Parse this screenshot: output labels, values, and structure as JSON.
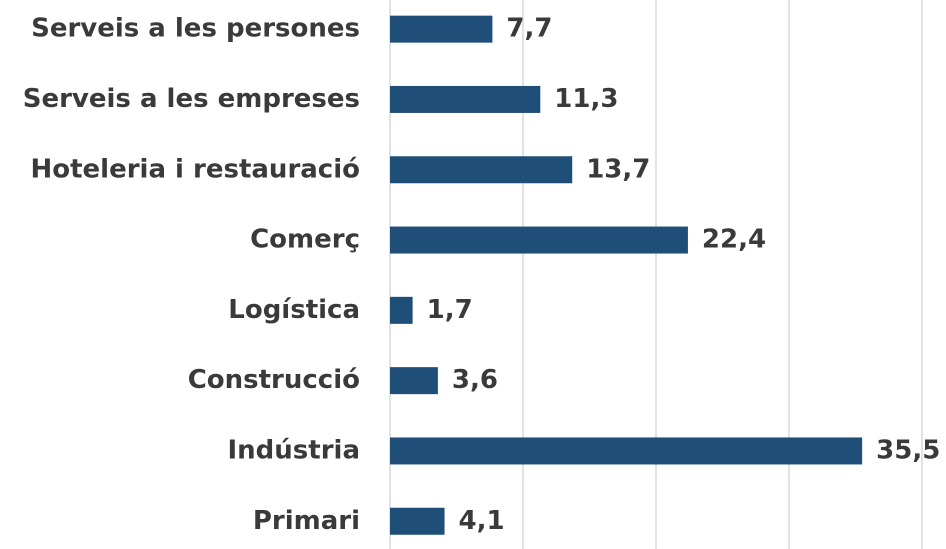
{
  "chart_data": {
    "type": "bar",
    "orientation": "horizontal",
    "categories": [
      "Serveis a les persones",
      "Serveis a les empreses",
      "Hoteleria i restauració",
      "Comerç",
      "Logística",
      "Construcció",
      "Indústria",
      "Primari"
    ],
    "values": [
      7.7,
      11.3,
      13.7,
      22.4,
      1.7,
      3.6,
      35.5,
      4.1
    ],
    "value_labels": [
      "7,7",
      "11,3",
      "13,7",
      "22,4",
      "1,7",
      "3,6",
      "35,5",
      "4,1"
    ],
    "color": "#1f4e79",
    "xlim": [
      0,
      40
    ],
    "xticks": [
      0,
      10,
      20,
      30,
      40
    ],
    "grid": true
  }
}
